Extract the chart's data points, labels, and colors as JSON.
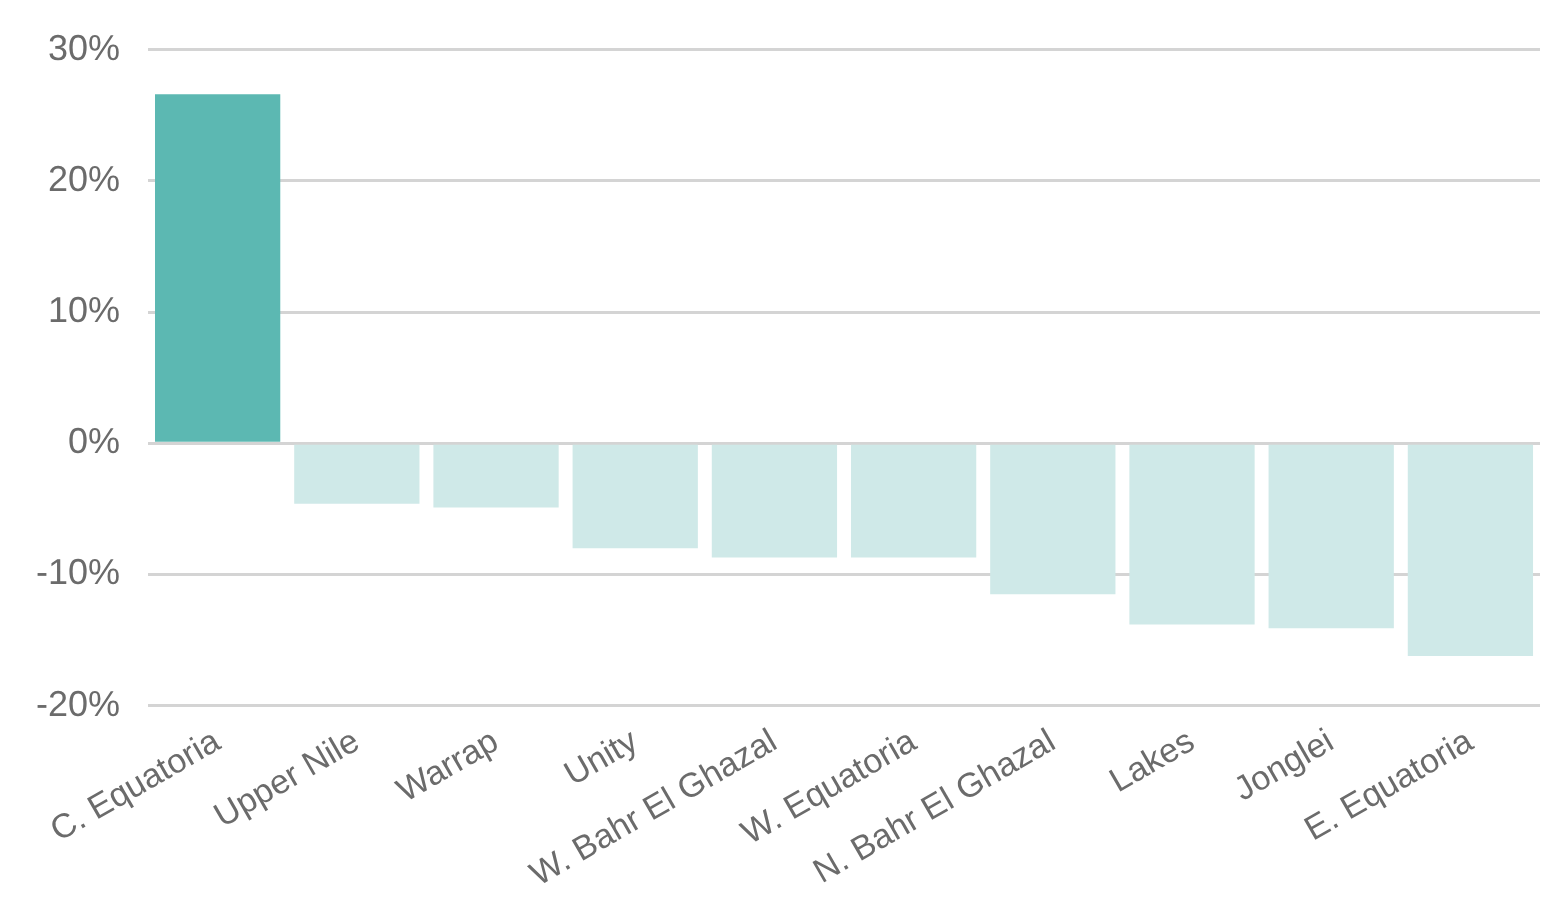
{
  "chart_data": {
    "type": "bar",
    "categories": [
      "C. Equatoria",
      "Upper Nile",
      "Warrap",
      "Unity",
      "W. Bahr El Ghazal",
      "W. Equatoria",
      "N. Bahr El Ghazal",
      "Lakes",
      "Jonglei",
      "E. Equatoria"
    ],
    "values": [
      26.6,
      -4.6,
      -4.9,
      -8.0,
      -8.7,
      -8.7,
      -11.5,
      -13.8,
      -14.1,
      -16.2
    ],
    "colors": [
      "#5cb8b2",
      "#cfe9e8",
      "#cfe9e8",
      "#cfe9e8",
      "#cfe9e8",
      "#cfe9e8",
      "#cfe9e8",
      "#cfe9e8",
      "#cfe9e8",
      "#cfe9e8"
    ],
    "ylim": [
      -20,
      30
    ],
    "yticks": [
      {
        "value": -20,
        "label": "-20%"
      },
      {
        "value": -10,
        "label": "-10%"
      },
      {
        "value": 0,
        "label": "0%"
      },
      {
        "value": 10,
        "label": "10%"
      },
      {
        "value": 20,
        "label": "20%"
      },
      {
        "value": 30,
        "label": "30%"
      }
    ],
    "grid": "y"
  }
}
